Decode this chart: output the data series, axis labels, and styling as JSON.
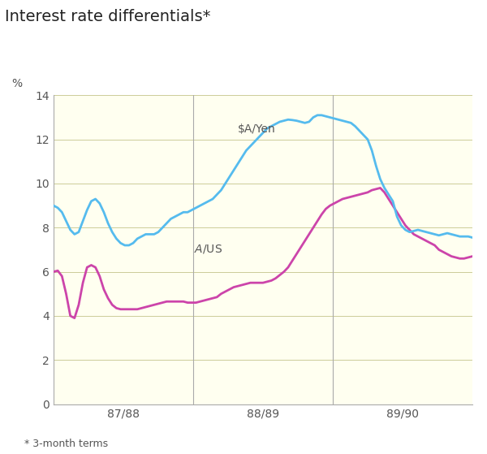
{
  "title": "Interest rate differentials*",
  "footnote": "* 3-month terms",
  "ylabel": "%",
  "ylim": [
    0,
    14
  ],
  "yticks": [
    0,
    2,
    4,
    6,
    8,
    10,
    12,
    14
  ],
  "fig_bg": "#FFFFFF",
  "plot_bg": "#FFFFF0",
  "grid_color": "#CCCC99",
  "vline_color": "#AAAAAA",
  "yen_color": "#55BBEE",
  "us_color": "#CC44AA",
  "yen_label": "$A/Yen",
  "us_label": "$A/$US",
  "x_tick_labels": [
    "87/88",
    "88/89",
    "89/90"
  ],
  "x_tick_positions": [
    0.1667,
    0.5,
    0.8333
  ],
  "vline_positions": [
    0.3333,
    0.6667
  ],
  "yen_x": [
    0.0,
    0.01,
    0.02,
    0.03,
    0.04,
    0.05,
    0.06,
    0.07,
    0.08,
    0.09,
    0.1,
    0.11,
    0.12,
    0.13,
    0.14,
    0.15,
    0.16,
    0.17,
    0.18,
    0.19,
    0.2,
    0.21,
    0.22,
    0.23,
    0.24,
    0.25,
    0.26,
    0.27,
    0.28,
    0.29,
    0.3,
    0.31,
    0.32,
    0.33,
    0.34,
    0.35,
    0.36,
    0.37,
    0.38,
    0.39,
    0.4,
    0.41,
    0.42,
    0.43,
    0.44,
    0.45,
    0.46,
    0.47,
    0.48,
    0.49,
    0.5,
    0.51,
    0.52,
    0.53,
    0.54,
    0.55,
    0.56,
    0.57,
    0.58,
    0.59,
    0.6,
    0.61,
    0.62,
    0.63,
    0.64,
    0.65,
    0.66,
    0.67,
    0.68,
    0.69,
    0.7,
    0.71,
    0.72,
    0.73,
    0.74,
    0.75,
    0.76,
    0.77,
    0.78,
    0.79,
    0.8,
    0.81,
    0.82,
    0.83,
    0.84,
    0.85,
    0.86,
    0.87,
    0.88,
    0.89,
    0.9,
    0.91,
    0.92,
    0.93,
    0.94,
    0.95,
    0.96,
    0.97,
    0.98,
    0.99,
    1.0
  ],
  "yen_y": [
    9.0,
    8.9,
    8.7,
    8.3,
    7.9,
    7.7,
    7.8,
    8.3,
    8.8,
    9.2,
    9.3,
    9.1,
    8.7,
    8.2,
    7.8,
    7.5,
    7.3,
    7.2,
    7.2,
    7.3,
    7.5,
    7.6,
    7.7,
    7.7,
    7.7,
    7.8,
    8.0,
    8.2,
    8.4,
    8.5,
    8.6,
    8.7,
    8.7,
    8.8,
    8.9,
    9.0,
    9.1,
    9.2,
    9.3,
    9.5,
    9.7,
    10.0,
    10.3,
    10.6,
    10.9,
    11.2,
    11.5,
    11.7,
    11.9,
    12.1,
    12.3,
    12.5,
    12.6,
    12.7,
    12.8,
    12.85,
    12.9,
    12.88,
    12.85,
    12.8,
    12.75,
    12.8,
    13.0,
    13.1,
    13.1,
    13.05,
    13.0,
    12.95,
    12.9,
    12.85,
    12.8,
    12.75,
    12.6,
    12.4,
    12.2,
    12.0,
    11.5,
    10.8,
    10.2,
    9.8,
    9.5,
    9.2,
    8.5,
    8.1,
    7.9,
    7.8,
    7.85,
    7.9,
    7.85,
    7.8,
    7.75,
    7.7,
    7.65,
    7.7,
    7.75,
    7.7,
    7.65,
    7.6,
    7.6,
    7.6,
    7.55
  ],
  "us_x": [
    0.0,
    0.01,
    0.02,
    0.03,
    0.04,
    0.05,
    0.06,
    0.07,
    0.08,
    0.09,
    0.1,
    0.11,
    0.12,
    0.13,
    0.14,
    0.15,
    0.16,
    0.17,
    0.18,
    0.19,
    0.2,
    0.21,
    0.22,
    0.23,
    0.24,
    0.25,
    0.26,
    0.27,
    0.28,
    0.29,
    0.3,
    0.31,
    0.32,
    0.33,
    0.34,
    0.35,
    0.36,
    0.37,
    0.38,
    0.39,
    0.4,
    0.41,
    0.42,
    0.43,
    0.44,
    0.45,
    0.46,
    0.47,
    0.48,
    0.49,
    0.5,
    0.51,
    0.52,
    0.53,
    0.54,
    0.55,
    0.56,
    0.57,
    0.58,
    0.59,
    0.6,
    0.61,
    0.62,
    0.63,
    0.64,
    0.65,
    0.66,
    0.67,
    0.68,
    0.69,
    0.7,
    0.71,
    0.72,
    0.73,
    0.74,
    0.75,
    0.76,
    0.77,
    0.78,
    0.79,
    0.8,
    0.81,
    0.82,
    0.83,
    0.84,
    0.85,
    0.86,
    0.87,
    0.88,
    0.89,
    0.9,
    0.91,
    0.92,
    0.93,
    0.94,
    0.95,
    0.96,
    0.97,
    0.98,
    0.99,
    1.0
  ],
  "us_y": [
    6.0,
    6.05,
    5.8,
    5.0,
    4.0,
    3.9,
    4.5,
    5.5,
    6.2,
    6.3,
    6.2,
    5.8,
    5.2,
    4.8,
    4.5,
    4.35,
    4.3,
    4.3,
    4.3,
    4.3,
    4.3,
    4.35,
    4.4,
    4.45,
    4.5,
    4.55,
    4.6,
    4.65,
    4.65,
    4.65,
    4.65,
    4.65,
    4.6,
    4.6,
    4.6,
    4.65,
    4.7,
    4.75,
    4.8,
    4.85,
    5.0,
    5.1,
    5.2,
    5.3,
    5.35,
    5.4,
    5.45,
    5.5,
    5.5,
    5.5,
    5.5,
    5.55,
    5.6,
    5.7,
    5.85,
    6.0,
    6.2,
    6.5,
    6.8,
    7.1,
    7.4,
    7.7,
    8.0,
    8.3,
    8.6,
    8.85,
    9.0,
    9.1,
    9.2,
    9.3,
    9.35,
    9.4,
    9.45,
    9.5,
    9.55,
    9.6,
    9.7,
    9.75,
    9.8,
    9.6,
    9.3,
    9.0,
    8.7,
    8.4,
    8.1,
    7.9,
    7.7,
    7.6,
    7.5,
    7.4,
    7.3,
    7.2,
    7.0,
    6.9,
    6.8,
    6.7,
    6.65,
    6.6,
    6.6,
    6.65,
    6.7
  ]
}
